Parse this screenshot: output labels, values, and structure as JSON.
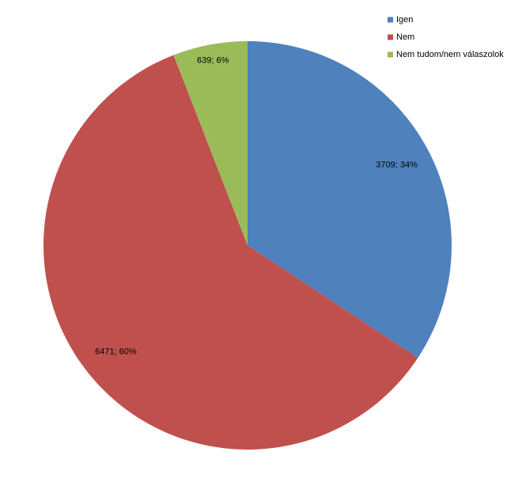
{
  "chart_data": {
    "type": "pie",
    "categories": [
      "Igen",
      "Nem",
      "Nem tudom/nem válaszolok"
    ],
    "values": [
      3709,
      6471,
      639
    ],
    "value_labels": [
      "3709; 34%",
      "6471; 60%",
      "639; 6%"
    ],
    "colors": [
      "#4f81bd",
      "#c0504d",
      "#9bbb59"
    ],
    "legend": "top-right"
  }
}
